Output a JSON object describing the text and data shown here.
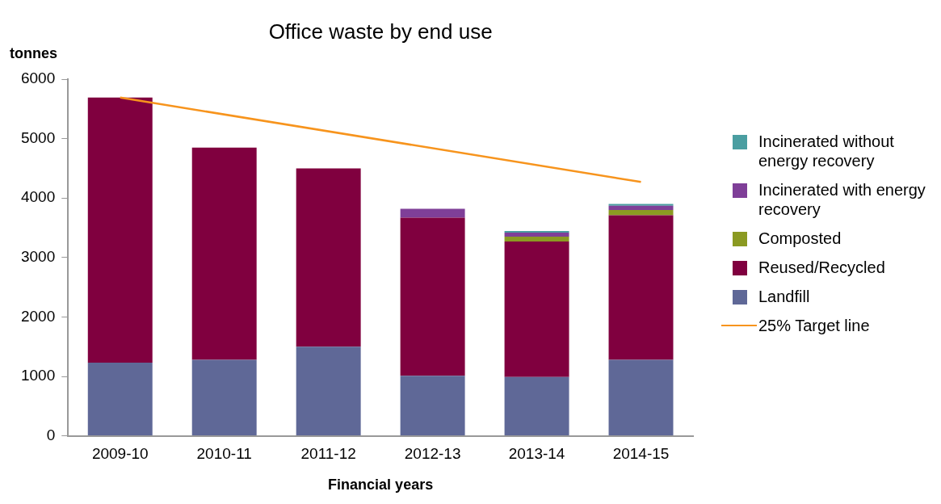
{
  "chart_data": {
    "type": "bar",
    "title": "Office waste by end use",
    "ylabel": "tonnes",
    "xlabel": "Financial years",
    "categories": [
      "2009-10",
      "2010-11",
      "2011-12",
      "2012-13",
      "2013-14",
      "2014-15"
    ],
    "stacked": true,
    "ylim": [
      0,
      6000
    ],
    "yticks": [
      0,
      1000,
      2000,
      3000,
      4000,
      5000,
      6000
    ],
    "grid": false,
    "legend": "right",
    "series": [
      {
        "name": "Landfill",
        "color": "#5f6897",
        "values": [
          1230,
          1280,
          1500,
          1010,
          990,
          1280
        ]
      },
      {
        "name": "Reused/Recycled",
        "color": "#80003f",
        "values": [
          4460,
          3570,
          3000,
          2660,
          2280,
          2430
        ]
      },
      {
        "name": "Composted",
        "color": "#8b9a22",
        "values": [
          0,
          0,
          0,
          0,
          80,
          90
        ]
      },
      {
        "name": "Incinerated with energy recovery",
        "color": "#7f3f98",
        "values": [
          0,
          0,
          0,
          150,
          70,
          70
        ]
      },
      {
        "name": "Incinerated without energy recovery",
        "color": "#4a9ea1",
        "values": [
          0,
          0,
          0,
          0,
          25,
          30
        ]
      },
      {
        "name": "25% Target line",
        "type": "line",
        "color": "#f7941d",
        "values": [
          5690,
          null,
          null,
          null,
          null,
          4270
        ]
      }
    ]
  }
}
